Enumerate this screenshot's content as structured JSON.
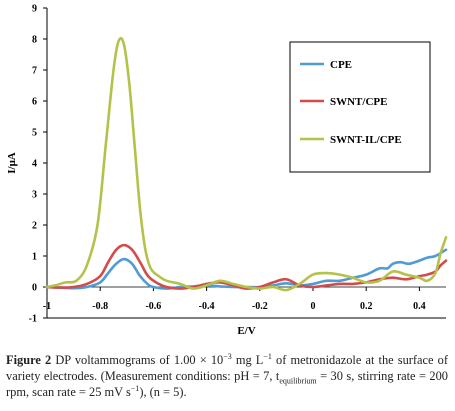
{
  "chart_data": {
    "type": "line",
    "title": "",
    "xlabel": "E/V",
    "ylabel": "I/μA",
    "xlim": [
      -1,
      0.5
    ],
    "ylim": [
      -1,
      9
    ],
    "x_ticks": [
      -1,
      -0.8,
      -0.6,
      -0.4,
      -0.2,
      0,
      0.2,
      0.4
    ],
    "x_tick_labels": [
      "-1",
      "-0.8",
      "-0.6",
      "-0.4",
      "-0.2",
      "0",
      "0.2",
      "0.4"
    ],
    "y_ticks": [
      -1,
      0,
      1,
      2,
      3,
      4,
      5,
      6,
      7,
      8,
      9
    ],
    "y_tick_labels": [
      "-1",
      "0",
      "1",
      "2",
      "3",
      "4",
      "5",
      "6",
      "7",
      "8",
      "9"
    ],
    "grid": false,
    "legend_position": "top-right",
    "series": [
      {
        "name": "CPE",
        "color": "#4f9bd6",
        "points": [
          [
            -1,
            0
          ],
          [
            -0.95,
            -0.02
          ],
          [
            -0.9,
            -0.04
          ],
          [
            -0.85,
            0
          ],
          [
            -0.8,
            0.15
          ],
          [
            -0.77,
            0.45
          ],
          [
            -0.74,
            0.75
          ],
          [
            -0.71,
            0.9
          ],
          [
            -0.68,
            0.75
          ],
          [
            -0.65,
            0.35
          ],
          [
            -0.62,
            0.08
          ],
          [
            -0.6,
            0
          ],
          [
            -0.55,
            -0.05
          ],
          [
            -0.5,
            0
          ],
          [
            -0.45,
            0.02
          ],
          [
            -0.4,
            0.05
          ],
          [
            -0.35,
            0.02
          ],
          [
            -0.3,
            0
          ],
          [
            -0.25,
            0
          ],
          [
            -0.2,
            0
          ],
          [
            -0.15,
            0.05
          ],
          [
            -0.1,
            0.12
          ],
          [
            -0.05,
            0.05
          ],
          [
            0,
            0.1
          ],
          [
            0.05,
            0.2
          ],
          [
            0.1,
            0.2
          ],
          [
            0.15,
            0.3
          ],
          [
            0.2,
            0.4
          ],
          [
            0.25,
            0.6
          ],
          [
            0.28,
            0.6
          ],
          [
            0.3,
            0.75
          ],
          [
            0.33,
            0.8
          ],
          [
            0.36,
            0.75
          ],
          [
            0.4,
            0.85
          ],
          [
            0.43,
            0.95
          ],
          [
            0.46,
            1
          ],
          [
            0.5,
            1.2
          ]
        ]
      },
      {
        "name": "SWNT/CPE",
        "color": "#d24c4c",
        "points": [
          [
            -1,
            0
          ],
          [
            -0.95,
            -0.02
          ],
          [
            -0.9,
            0
          ],
          [
            -0.85,
            0.1
          ],
          [
            -0.8,
            0.35
          ],
          [
            -0.77,
            0.8
          ],
          [
            -0.74,
            1.2
          ],
          [
            -0.71,
            1.35
          ],
          [
            -0.68,
            1.2
          ],
          [
            -0.65,
            0.8
          ],
          [
            -0.62,
            0.35
          ],
          [
            -0.58,
            0.1
          ],
          [
            -0.55,
            0
          ],
          [
            -0.5,
            -0.05
          ],
          [
            -0.45,
            0
          ],
          [
            -0.4,
            0.1
          ],
          [
            -0.35,
            0.15
          ],
          [
            -0.3,
            0.05
          ],
          [
            -0.25,
            -0.05
          ],
          [
            -0.2,
            0
          ],
          [
            -0.15,
            0.15
          ],
          [
            -0.1,
            0.25
          ],
          [
            -0.05,
            0.05
          ],
          [
            0,
            0
          ],
          [
            0.05,
            0.05
          ],
          [
            0.1,
            0.1
          ],
          [
            0.15,
            0.1
          ],
          [
            0.2,
            0.15
          ],
          [
            0.25,
            0.25
          ],
          [
            0.3,
            0.3
          ],
          [
            0.35,
            0.25
          ],
          [
            0.4,
            0.35
          ],
          [
            0.43,
            0.4
          ],
          [
            0.46,
            0.5
          ],
          [
            0.48,
            0.7
          ],
          [
            0.5,
            0.85
          ]
        ]
      },
      {
        "name": "SWNT-IL/CPE",
        "color": "#b5c24a",
        "points": [
          [
            -1,
            0
          ],
          [
            -0.97,
            0.05
          ],
          [
            -0.93,
            0.15
          ],
          [
            -0.89,
            0.2
          ],
          [
            -0.85,
            0.7
          ],
          [
            -0.81,
            2
          ],
          [
            -0.78,
            4.5
          ],
          [
            -0.75,
            7
          ],
          [
            -0.73,
            7.95
          ],
          [
            -0.71,
            7.8
          ],
          [
            -0.69,
            6.5
          ],
          [
            -0.67,
            4.5
          ],
          [
            -0.65,
            2.5
          ],
          [
            -0.63,
            1.2
          ],
          [
            -0.61,
            0.6
          ],
          [
            -0.58,
            0.35
          ],
          [
            -0.55,
            0.2
          ],
          [
            -0.5,
            0.1
          ],
          [
            -0.45,
            -0.05
          ],
          [
            -0.4,
            0.05
          ],
          [
            -0.35,
            0.2
          ],
          [
            -0.3,
            0.1
          ],
          [
            -0.25,
            0
          ],
          [
            -0.2,
            -0.05
          ],
          [
            -0.15,
            0
          ],
          [
            -0.1,
            -0.1
          ],
          [
            -0.05,
            0.1
          ],
          [
            0,
            0.4
          ],
          [
            0.05,
            0.45
          ],
          [
            0.1,
            0.4
          ],
          [
            0.15,
            0.3
          ],
          [
            0.2,
            0.15
          ],
          [
            0.25,
            0.2
          ],
          [
            0.3,
            0.5
          ],
          [
            0.35,
            0.4
          ],
          [
            0.4,
            0.3
          ],
          [
            0.43,
            0.2
          ],
          [
            0.46,
            0.45
          ],
          [
            0.48,
            1.1
          ],
          [
            0.5,
            1.6
          ]
        ]
      }
    ]
  },
  "caption": {
    "lead": "Figure 2",
    "part1": "  DP voltammograms of 1.00 × 10",
    "exp1": "−3",
    "part2": " mg L",
    "exp2": "−1",
    "part3": " of metronidazole at the surface of variety electrodes. (Measurement conditions: pH = 7, t",
    "sub1": "equilibrium",
    "part4": " = 30 s, stirring rate = 200 rpm, scan rate = 25 mV s",
    "exp3": "−1",
    "part5": "), (n = 5)."
  }
}
